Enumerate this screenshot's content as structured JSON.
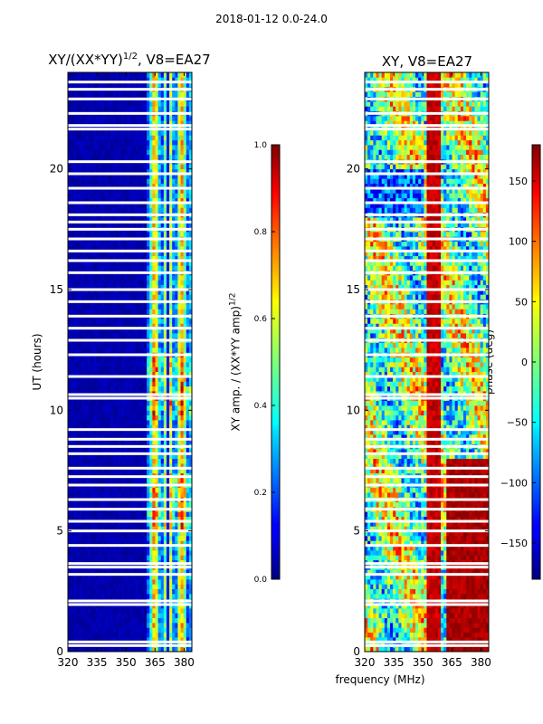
{
  "chart_data": [
    {
      "type": "heatmap",
      "title": "XY/(XX*YY)^1/2, V8=EA27",
      "title_main": "XY/(XX*YY)",
      "title_exp": "1/2",
      "title_tail": ", V8=EA27",
      "xlabel": "frequency (MHz)",
      "ylabel": "UT (hours)",
      "xlim": [
        320,
        384
      ],
      "ylim": [
        0,
        24
      ],
      "xticks": [
        320,
        335,
        350,
        365,
        380
      ],
      "yticks": [
        0,
        5,
        10,
        15,
        20
      ],
      "colorbar": {
        "label_main": "XY amp. / (XX*YY amp)",
        "label_exp": "1/2",
        "range": [
          0.0,
          1.0
        ],
        "ticks": [
          "0.0",
          "0.2",
          "0.4",
          "0.6",
          "0.8",
          "1.0"
        ],
        "colormap": "jet"
      }
    },
    {
      "type": "heatmap",
      "title": "XY, V8=EA27",
      "xlabel": "frequency (MHz)",
      "xlim": [
        320,
        384
      ],
      "ylim": [
        0,
        24
      ],
      "xticks": [
        320,
        335,
        350,
        365,
        380
      ],
      "yticks": [
        0,
        5,
        10,
        15,
        20
      ],
      "colorbar": {
        "label": "phase (deg)",
        "range": [
          -180,
          180
        ],
        "ticks": [
          "−150",
          "−100",
          "−50",
          "0",
          "50",
          "100",
          "150"
        ],
        "tick_values": [
          -150,
          -100,
          -50,
          0,
          50,
          100,
          150
        ],
        "colormap": "jet"
      }
    }
  ],
  "suptitle": "2018-01-12 0.0-24.0",
  "flagged_ut_hours": [
    0.25,
    0.4,
    1.95,
    2.1,
    3.2,
    3.5,
    3.65,
    4.4,
    5.0,
    5.4,
    5.9,
    6.3,
    6.9,
    7.25,
    7.6,
    8.2,
    8.5,
    8.8,
    9.2,
    10.5,
    10.65,
    11.4,
    12.3,
    12.9,
    13.4,
    13.9,
    14.5,
    15.0,
    15.7,
    16.2,
    16.6,
    17.1,
    17.5,
    17.8,
    18.1,
    18.6,
    19.2,
    19.8,
    20.3,
    21.65,
    21.8,
    22.3,
    22.9,
    23.3,
    23.6
  ]
}
